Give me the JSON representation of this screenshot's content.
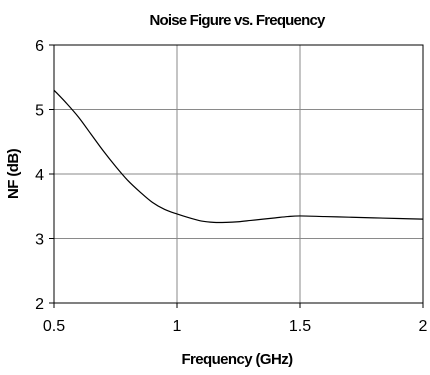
{
  "chart_data": {
    "type": "line",
    "title": "Noise Figure vs. Frequency",
    "xlabel": "Frequency (GHz)",
    "ylabel": "NF (dB)",
    "xlim": [
      0.5,
      2
    ],
    "ylim": [
      2,
      6
    ],
    "xticks": [
      0.5,
      1,
      1.5,
      2
    ],
    "xtick_labels": [
      "0.5",
      "1",
      "1.5",
      "2"
    ],
    "yticks": [
      2,
      3,
      4,
      5,
      6
    ],
    "ytick_labels": [
      "2",
      "3",
      "4",
      "5",
      "6"
    ],
    "grid": true,
    "series": [
      {
        "color": "#000000",
        "x": [
          0.5,
          0.55,
          0.6,
          0.65,
          0.7,
          0.75,
          0.8,
          0.85,
          0.9,
          0.95,
          1.0,
          1.05,
          1.1,
          1.15,
          1.2,
          1.25,
          1.3,
          1.35,
          1.4,
          1.45,
          1.5,
          1.6,
          1.7,
          1.8,
          1.9,
          2.0
        ],
        "y": [
          5.3,
          5.1,
          4.88,
          4.62,
          4.36,
          4.12,
          3.9,
          3.72,
          3.56,
          3.45,
          3.38,
          3.32,
          3.27,
          3.25,
          3.25,
          3.26,
          3.28,
          3.3,
          3.32,
          3.34,
          3.35,
          3.34,
          3.33,
          3.32,
          3.31,
          3.3
        ]
      }
    ]
  }
}
